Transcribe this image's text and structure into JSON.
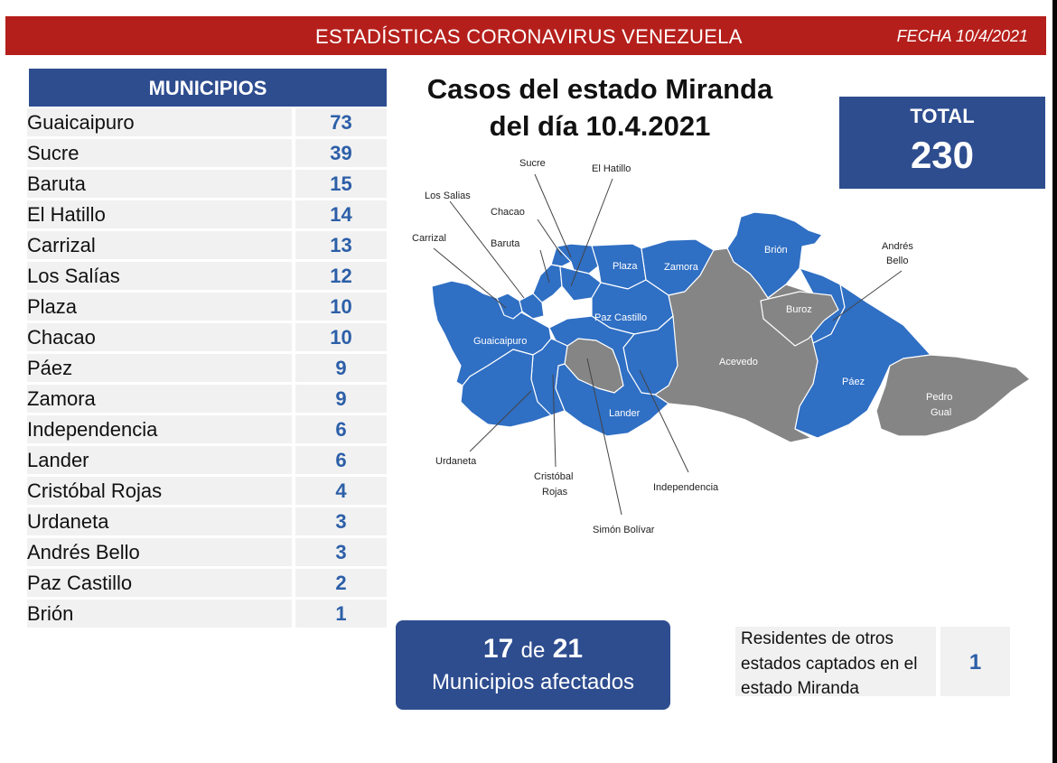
{
  "header": {
    "title": "ESTADÍSTICAS CORONAVIRUS VENEZUELA",
    "date": "FECHA 10/4/2021"
  },
  "municipios": {
    "heading": "MUNICIPIOS",
    "rows": [
      {
        "name": "Guaicaipuro",
        "value": "73"
      },
      {
        "name": "Sucre",
        "value": "39"
      },
      {
        "name": "Baruta",
        "value": "15"
      },
      {
        "name": "El Hatillo",
        "value": "14"
      },
      {
        "name": "Carrizal",
        "value": "13"
      },
      {
        "name": "Los Salías",
        "value": "12"
      },
      {
        "name": "Plaza",
        "value": "10"
      },
      {
        "name": "Chacao",
        "value": "10"
      },
      {
        "name": "Páez",
        "value": "9"
      },
      {
        "name": "Zamora",
        "value": "9"
      },
      {
        "name": "Independencia",
        "value": "6"
      },
      {
        "name": "Lander",
        "value": "6"
      },
      {
        "name": "Cristóbal Rojas",
        "value": "4"
      },
      {
        "name": "Urdaneta",
        "value": "3"
      },
      {
        "name": "Andrés Bello",
        "value": "3"
      },
      {
        "name": "Paz Castillo",
        "value": "2"
      },
      {
        "name": "Brión",
        "value": "1"
      }
    ]
  },
  "map": {
    "title_line1": "Casos del estado Miranda",
    "title_line2": "del día 10.4.2021",
    "labels": {
      "sucre": "Sucre",
      "el_hatillo": "El Hatillo",
      "los_salias": "Los Salias",
      "chacao": "Chacao",
      "carrizal": "Carrizal",
      "baruta": "Baruta",
      "plaza": "Plaza",
      "zamora": "Zamora",
      "brion": "Brión",
      "andres_bello_1": "Andrés",
      "andres_bello_2": "Bello",
      "buroz": "Buroz",
      "paz_castillo": "Paz Castillo",
      "guaicaipuro": "Guaicaipuro",
      "acevedo": "Acevedo",
      "paez": "Páez",
      "pedro_gual_1": "Pedro",
      "pedro_gual_2": "Gual",
      "lander": "Lander",
      "urdaneta": "Urdaneta",
      "cristobal_rojas_1": "Cristóbal",
      "cristobal_rojas_2": "Rojas",
      "independencia": "Independencia",
      "simon_bolivar": "Simón Bolívar"
    },
    "colors": {
      "affected": "#2f6fc4",
      "unaffected": "#858585"
    }
  },
  "total": {
    "label": "TOTAL",
    "value": "230"
  },
  "affected": {
    "count": "17",
    "connector": "de",
    "of": "21",
    "label": "Municipios afectados"
  },
  "residents": {
    "text": "Residentes de otros estados captados en el estado Miranda",
    "value": "1"
  },
  "colors": {
    "banner": "#b51f1b",
    "panel": "#2e4d8f",
    "value_text": "#2c5fa8",
    "row_bg": "#f1f1f1"
  }
}
